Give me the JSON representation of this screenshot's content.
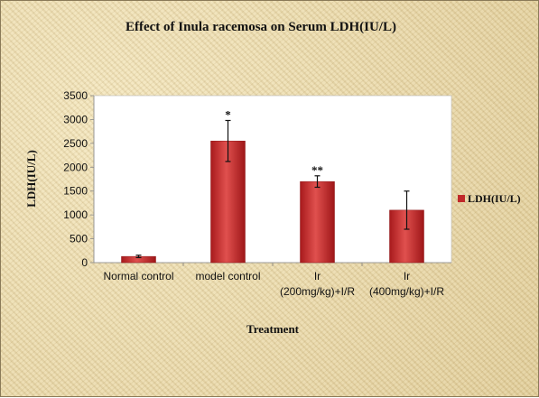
{
  "chart_data": {
    "type": "bar",
    "title": "Effect of Inula racemosa on Serum LDH(IU/L)",
    "xlabel": "Treatment",
    "ylabel": "LDH(IU/L)",
    "ylim": [
      0,
      3500
    ],
    "yticks": [
      "0",
      "500",
      "1000",
      "1500",
      "2000",
      "2500",
      "3000",
      "3500"
    ],
    "categories": [
      [
        "Normal control"
      ],
      [
        "model control"
      ],
      [
        "Ir",
        "(200mg/kg)+I/R"
      ],
      [
        "Ir",
        "(400mg/kg)+I/R"
      ]
    ],
    "series": [
      {
        "name": "LDH(IU/L)",
        "color": "#c0282a",
        "values": [
          130,
          2550,
          1700,
          1100
        ],
        "error": [
          25,
          430,
          120,
          400
        ],
        "annotations": [
          "",
          "*",
          "**",
          ""
        ]
      }
    ],
    "legend_position": "right",
    "grid": false
  }
}
